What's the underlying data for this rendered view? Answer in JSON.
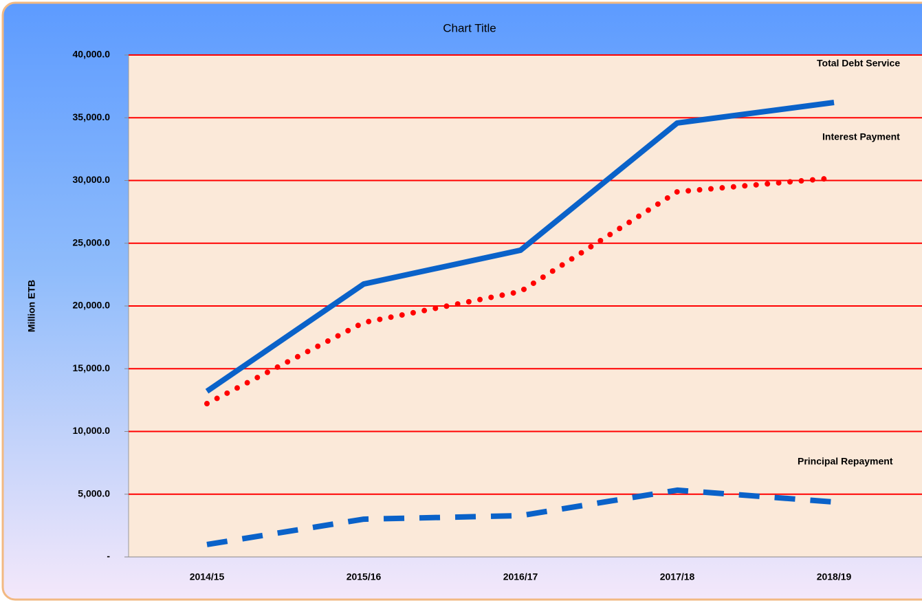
{
  "chart_data": {
    "type": "line",
    "title": "Chart Title",
    "y_label": "Million ETB",
    "categories": [
      "2014/15",
      "2015/16",
      "2016/17",
      "2017/18",
      "2018/19"
    ],
    "series": [
      {
        "name": "Total Debt Service",
        "color": "#0a62c9",
        "style": "solid",
        "values": [
          13200,
          21750,
          24440,
          34580,
          36220
        ]
      },
      {
        "name": "Interest Payment",
        "color": "#ff0000",
        "style": "dotted",
        "values": [
          12220,
          18680,
          21150,
          29100,
          30200
        ]
      },
      {
        "name": "Principal Repayment",
        "color": "#0a62c9",
        "style": "dashed",
        "values": [
          990,
          3010,
          3290,
          5320,
          4380
        ]
      }
    ],
    "ylim": [
      0,
      40000
    ],
    "yticks": [
      {
        "value": 0,
        "label": "-"
      },
      {
        "value": 5000,
        "label": "5,000.0"
      },
      {
        "value": 10000,
        "label": "10,000.0"
      },
      {
        "value": 15000,
        "label": "15,000.0"
      },
      {
        "value": 20000,
        "label": "20,000.0"
      },
      {
        "value": 25000,
        "label": "25,000.0"
      },
      {
        "value": 30000,
        "label": "30,000.0"
      },
      {
        "value": 35000,
        "label": "35,000.0"
      },
      {
        "value": 40000,
        "label": "40,000.0"
      }
    ],
    "grid": true,
    "grid_color": "#ff0000"
  }
}
